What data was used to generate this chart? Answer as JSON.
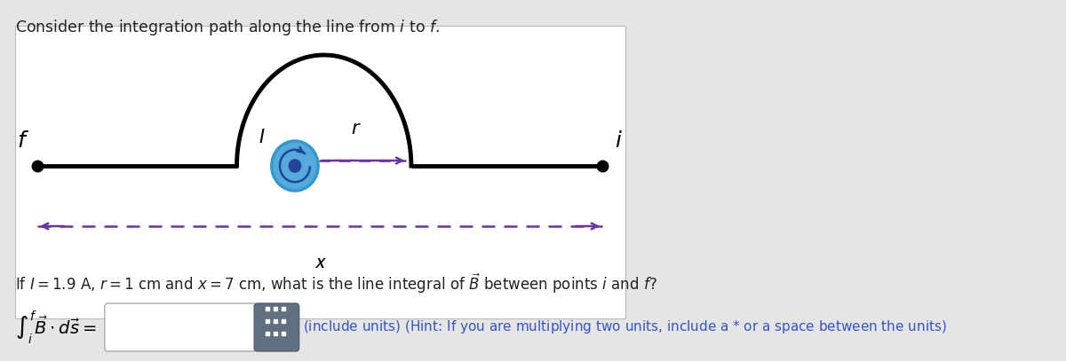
{
  "bg_color": "#e5e5e5",
  "panel_bg": "#ffffff",
  "line_color": "#000000",
  "line_lw": 3.5,
  "purple_color": "#6633aa",
  "blue_outer": "#3399cc",
  "blue_inner": "#224499",
  "blue_fill": "#55aadd",
  "hint_color": "#3355cc",
  "gray_btn": "#607080"
}
